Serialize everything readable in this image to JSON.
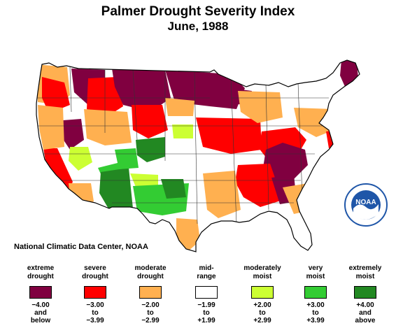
{
  "title": "Palmer Drought Severity Index",
  "subtitle": "June, 1988",
  "credit": "National Climatic Data Center, NOAA",
  "logo": {
    "text": "NOAA",
    "color": "#1f56a8"
  },
  "legend": [
    {
      "label_1": "extreme",
      "label_2": "drought",
      "range_1": "−4.00",
      "range_2": "and",
      "range_3": "below",
      "color": "#800040"
    },
    {
      "label_1": "severe",
      "label_2": "drought",
      "range_1": "−3.00",
      "range_2": "to",
      "range_3": "−3.99",
      "color": "#ff0000"
    },
    {
      "label_1": "moderate",
      "label_2": "drought",
      "range_1": "−2.00",
      "range_2": "to",
      "range_3": "−2.99",
      "color": "#ffb050"
    },
    {
      "label_1": "mid-",
      "label_2": "range",
      "range_1": "−1.99",
      "range_2": "to",
      "range_3": "+1.99",
      "color": "#ffffff"
    },
    {
      "label_1": "moderately",
      "label_2": "moist",
      "range_1": "+2.00",
      "range_2": "to",
      "range_3": "+2.99",
      "color": "#ccff33"
    },
    {
      "label_1": "very",
      "label_2": "moist",
      "range_1": "+3.00",
      "range_2": "to",
      "range_3": "+3.99",
      "color": "#33cc33"
    },
    {
      "label_1": "extremely",
      "label_2": "moist",
      "range_1": "+4.00",
      "range_2": "and",
      "range_3": "above",
      "color": "#228822"
    }
  ]
}
